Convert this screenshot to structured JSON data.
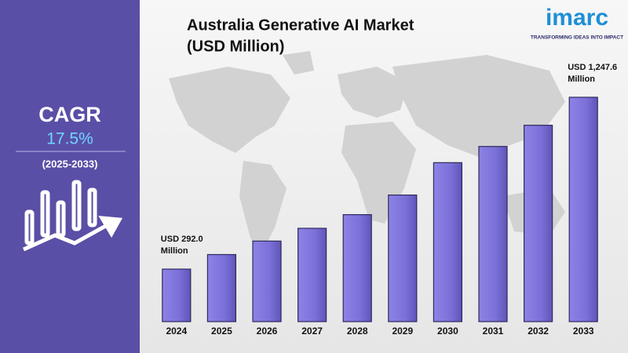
{
  "chart_data": {
    "type": "bar",
    "title": "Australia Generative AI Market",
    "subtitle": "(USD Million)",
    "categories": [
      "2024",
      "2025",
      "2026",
      "2027",
      "2028",
      "2029",
      "2030",
      "2031",
      "2032",
      "2033"
    ],
    "values": [
      292.0,
      373,
      448,
      519,
      595,
      704,
      884,
      974,
      1092,
      1247.6
    ],
    "value_labels": [
      "USD 292.0 Million",
      null,
      null,
      null,
      null,
      null,
      null,
      null,
      null,
      "USD 1,247.6 Million"
    ],
    "color": "#7b70d8"
  },
  "sidebar": {
    "label": "CAGR",
    "value": "17.5%",
    "period": "(2025-2033)"
  },
  "logo": {
    "name": "imarc",
    "tagline": "TRANSFORMING IDEAS INTO IMPACT"
  }
}
